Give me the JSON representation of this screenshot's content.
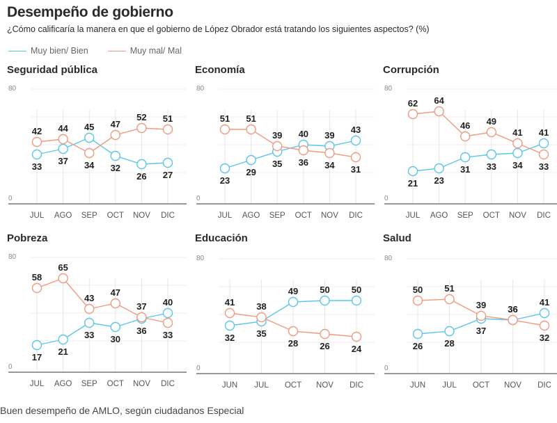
{
  "header": {
    "title": "Desempeño de gobierno",
    "subtitle": "¿Cómo calificaría la manera en que el gobierno de López Obrador está tratando los siguientes aspectos? (%)"
  },
  "legend": [
    {
      "label": "Muy bien/ Bien",
      "color": "#5bc6ea"
    },
    {
      "label": "Muy mal/ Mal",
      "color": "#f09a80"
    }
  ],
  "caption": {
    "text": "Buen desempeño de AMLO, según ciudadanos",
    "credit": "Especial"
  },
  "chart_data": [
    {
      "type": "line",
      "title": "Seguridad pública",
      "categories": [
        "JUL",
        "AGO",
        "SEP",
        "OCT",
        "NOV",
        "DIC"
      ],
      "ylim": [
        0,
        80
      ],
      "yticks": [
        "0",
        "80"
      ],
      "grid": true,
      "series": [
        {
          "name": "Muy bien/ Bien",
          "values": [
            33,
            37,
            45,
            32,
            26,
            27
          ]
        },
        {
          "name": "Muy mal/ Mal",
          "values": [
            42,
            44,
            34,
            47,
            52,
            51
          ]
        }
      ]
    },
    {
      "type": "line",
      "title": "Economía",
      "categories": [
        "JUL",
        "AGO",
        "SEP",
        "OCT",
        "NOV",
        "DIC"
      ],
      "ylim": [
        0,
        80
      ],
      "yticks": [
        "0",
        "80"
      ],
      "grid": true,
      "series": [
        {
          "name": "Muy bien/ Bien",
          "values": [
            23,
            29,
            35,
            40,
            39,
            43
          ]
        },
        {
          "name": "Muy mal/ Mal",
          "values": [
            51,
            51,
            39,
            36,
            34,
            31
          ]
        }
      ]
    },
    {
      "type": "line",
      "title": "Corrupción",
      "categories": [
        "JUL",
        "AGO",
        "SEP",
        "OCT",
        "NOV",
        "DIC"
      ],
      "ylim": [
        0,
        80
      ],
      "yticks": [
        "0",
        "80"
      ],
      "grid": true,
      "series": [
        {
          "name": "Muy bien/ Bien",
          "values": [
            21,
            23,
            31,
            33,
            34,
            41
          ]
        },
        {
          "name": "Muy mal/ Mal",
          "values": [
            62,
            64,
            46,
            49,
            41,
            33
          ]
        }
      ]
    },
    {
      "type": "line",
      "title": "Pobreza",
      "categories": [
        "JUL",
        "AGO",
        "SEP",
        "OCT",
        "NOV",
        "DIC"
      ],
      "ylim": [
        0,
        80
      ],
      "yticks": [
        "0",
        "80"
      ],
      "grid": true,
      "series": [
        {
          "name": "Muy bien/ Bien",
          "values": [
            17,
            21,
            33,
            30,
            36,
            40
          ]
        },
        {
          "name": "Muy mal/ Mal",
          "values": [
            58,
            65,
            43,
            47,
            37,
            33
          ]
        }
      ]
    },
    {
      "type": "line",
      "title": "Educación",
      "categories": [
        "JUN",
        "JUL",
        "OCT",
        "NOV",
        "DIC"
      ],
      "ylim": [
        0,
        80
      ],
      "yticks": [
        "0",
        "80"
      ],
      "grid": true,
      "series": [
        {
          "name": "Muy bien/ Bien",
          "values": [
            32,
            35,
            49,
            50,
            50
          ]
        },
        {
          "name": "Muy mal/ Mal",
          "values": [
            41,
            38,
            28,
            26,
            24
          ]
        }
      ]
    },
    {
      "type": "line",
      "title": "Salud",
      "categories": [
        "JUN",
        "JUL",
        "OCT",
        "NOV",
        "DIC"
      ],
      "ylim": [
        0,
        80
      ],
      "yticks": [
        "0",
        "80"
      ],
      "grid": true,
      "series": [
        {
          "name": "Muy bien/ Bien",
          "values": [
            26,
            28,
            37,
            36,
            41
          ]
        },
        {
          "name": "Muy mal/ Mal",
          "values": [
            50,
            51,
            39,
            36,
            32
          ]
        }
      ]
    }
  ]
}
